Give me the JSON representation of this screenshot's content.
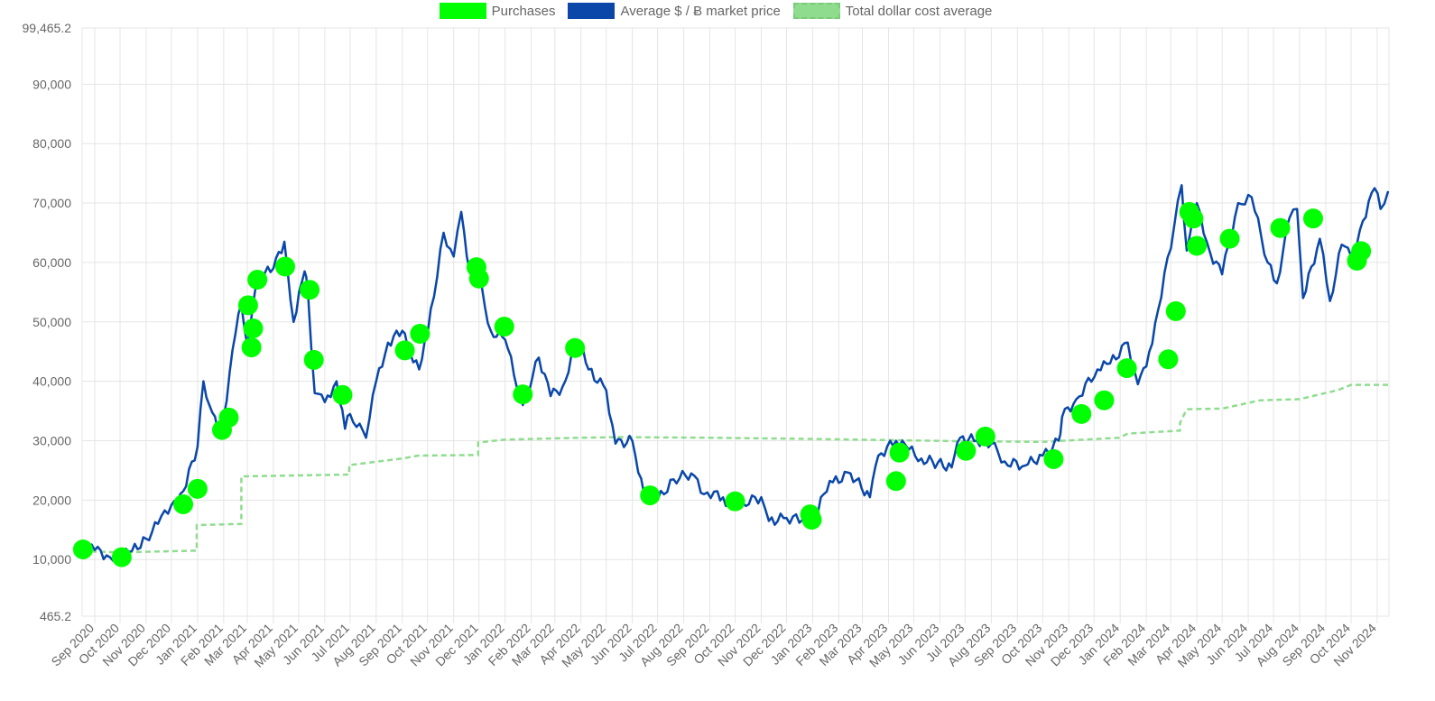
{
  "legend": {
    "purchases": "Purchases",
    "price": "Average $ / Ƀ market price",
    "cost_average": "Total dollar cost average"
  },
  "colors": {
    "purchases": "#00ff00",
    "price": "#0a47a8",
    "cost_average": "#8fdc8f",
    "grid": "#e5e5e5"
  },
  "chart_data": {
    "type": "line",
    "ylim": [
      465.2,
      99465.2
    ],
    "yticks": [
      465.2,
      10000,
      20000,
      30000,
      40000,
      50000,
      60000,
      70000,
      80000,
      90000,
      99465.2
    ],
    "ytick_labels": [
      "465.2",
      "10,000",
      "20,000",
      "30,000",
      "40,000",
      "50,000",
      "60,000",
      "70,000",
      "80,000",
      "90,000",
      "99,465.2"
    ],
    "x_start": "2020-08-17",
    "x_end": "2024-11-15",
    "xticks": [
      {
        "label": "Sep 2020",
        "date": "2020-09-01"
      },
      {
        "label": "Oct 2020",
        "date": "2020-10-01"
      },
      {
        "label": "Nov 2020",
        "date": "2020-11-01"
      },
      {
        "label": "Dec 2020",
        "date": "2020-12-01"
      },
      {
        "label": "Jan 2021",
        "date": "2021-01-01"
      },
      {
        "label": "Feb 2021",
        "date": "2021-02-01"
      },
      {
        "label": "Mar 2021",
        "date": "2021-03-01"
      },
      {
        "label": "Apr 2021",
        "date": "2021-04-01"
      },
      {
        "label": "May 2021",
        "date": "2021-05-01"
      },
      {
        "label": "Jun 2021",
        "date": "2021-06-01"
      },
      {
        "label": "Jul 2021",
        "date": "2021-07-01"
      },
      {
        "label": "Aug 2021",
        "date": "2021-08-01"
      },
      {
        "label": "Sep 2021",
        "date": "2021-09-01"
      },
      {
        "label": "Oct 2021",
        "date": "2021-10-01"
      },
      {
        "label": "Nov 2021",
        "date": "2021-11-01"
      },
      {
        "label": "Dec 2021",
        "date": "2021-12-01"
      },
      {
        "label": "Jan 2022",
        "date": "2022-01-01"
      },
      {
        "label": "Feb 2022",
        "date": "2022-02-01"
      },
      {
        "label": "Mar 2022",
        "date": "2022-03-01"
      },
      {
        "label": "Apr 2022",
        "date": "2022-04-01"
      },
      {
        "label": "May 2022",
        "date": "2022-05-01"
      },
      {
        "label": "Jun 2022",
        "date": "2022-06-01"
      },
      {
        "label": "Jul 2022",
        "date": "2022-07-01"
      },
      {
        "label": "Aug 2022",
        "date": "2022-08-01"
      },
      {
        "label": "Sep 2022",
        "date": "2022-09-01"
      },
      {
        "label": "Oct 2022",
        "date": "2022-10-01"
      },
      {
        "label": "Nov 2022",
        "date": "2022-11-01"
      },
      {
        "label": "Dec 2022",
        "date": "2022-12-01"
      },
      {
        "label": "Jan 2023",
        "date": "2023-01-01"
      },
      {
        "label": "Feb 2023",
        "date": "2023-02-01"
      },
      {
        "label": "Mar 2023",
        "date": "2023-03-01"
      },
      {
        "label": "Apr 2023",
        "date": "2023-04-01"
      },
      {
        "label": "May 2023",
        "date": "2023-05-01"
      },
      {
        "label": "Jun 2023",
        "date": "2023-06-01"
      },
      {
        "label": "Jul 2023",
        "date": "2023-07-01"
      },
      {
        "label": "Aug 2023",
        "date": "2023-08-01"
      },
      {
        "label": "Sep 2023",
        "date": "2023-09-01"
      },
      {
        "label": "Oct 2023",
        "date": "2023-10-01"
      },
      {
        "label": "Nov 2023",
        "date": "2023-11-01"
      },
      {
        "label": "Dec 2023",
        "date": "2023-12-01"
      },
      {
        "label": "Jan 2024",
        "date": "2024-01-01"
      },
      {
        "label": "Feb 2024",
        "date": "2024-02-01"
      },
      {
        "label": "Mar 2024",
        "date": "2024-03-01"
      },
      {
        "label": "Apr 2024",
        "date": "2024-04-01"
      },
      {
        "label": "May 2024",
        "date": "2024-05-01"
      },
      {
        "label": "Jun 2024",
        "date": "2024-06-01"
      },
      {
        "label": "Jul 2024",
        "date": "2024-07-01"
      },
      {
        "label": "Aug 2024",
        "date": "2024-08-01"
      },
      {
        "label": "Sep 2024",
        "date": "2024-09-01"
      },
      {
        "label": "Oct 2024",
        "date": "2024-10-01"
      },
      {
        "label": "Nov 2024",
        "date": "2024-11-01"
      }
    ],
    "grid": true,
    "legend_position": "top",
    "series": [
      {
        "name": "Average $ / Ƀ market price",
        "type": "line",
        "points": [
          [
            "2020-08-17",
            11900
          ],
          [
            "2020-09-01",
            11600
          ],
          [
            "2020-09-15",
            10700
          ],
          [
            "2020-10-01",
            10500
          ],
          [
            "2020-10-15",
            11400
          ],
          [
            "2020-11-01",
            13500
          ],
          [
            "2020-11-15",
            16000
          ],
          [
            "2020-12-01",
            19200
          ],
          [
            "2020-12-15",
            21500
          ],
          [
            "2021-01-01",
            29000
          ],
          [
            "2021-01-08",
            40000
          ],
          [
            "2021-01-15",
            36000
          ],
          [
            "2021-01-25",
            31800
          ],
          [
            "2021-02-01",
            34000
          ],
          [
            "2021-02-15",
            48000
          ],
          [
            "2021-02-22",
            53000
          ],
          [
            "2021-03-01",
            46000
          ],
          [
            "2021-03-10",
            55000
          ],
          [
            "2021-03-15",
            57500
          ],
          [
            "2021-04-01",
            59000
          ],
          [
            "2021-04-14",
            63500
          ],
          [
            "2021-04-25",
            50000
          ],
          [
            "2021-05-08",
            58500
          ],
          [
            "2021-05-12",
            55000
          ],
          [
            "2021-05-20",
            38000
          ],
          [
            "2021-06-01",
            36500
          ],
          [
            "2021-06-15",
            40000
          ],
          [
            "2021-06-25",
            32000
          ],
          [
            "2021-07-01",
            34500
          ],
          [
            "2021-07-20",
            30500
          ],
          [
            "2021-08-01",
            40000
          ],
          [
            "2021-08-15",
            46500
          ],
          [
            "2021-09-01",
            48500
          ],
          [
            "2021-09-07",
            46000
          ],
          [
            "2021-09-21",
            42000
          ],
          [
            "2021-10-01",
            48000
          ],
          [
            "2021-10-20",
            65000
          ],
          [
            "2021-11-01",
            61000
          ],
          [
            "2021-11-10",
            68500
          ],
          [
            "2021-11-20",
            58500
          ],
          [
            "2021-12-01",
            57000
          ],
          [
            "2021-12-15",
            48500
          ],
          [
            "2022-01-01",
            47000
          ],
          [
            "2022-01-22",
            36000
          ],
          [
            "2022-02-10",
            44000
          ],
          [
            "2022-02-24",
            37500
          ],
          [
            "2022-03-10",
            39000
          ],
          [
            "2022-03-28",
            47000
          ],
          [
            "2022-04-10",
            42000
          ],
          [
            "2022-05-01",
            38500
          ],
          [
            "2022-05-12",
            29500
          ],
          [
            "2022-06-01",
            30000
          ],
          [
            "2022-06-15",
            21000
          ],
          [
            "2022-07-01",
            20000
          ],
          [
            "2022-07-20",
            23500
          ],
          [
            "2022-08-10",
            24500
          ],
          [
            "2022-08-25",
            21000
          ],
          [
            "2022-09-10",
            21500
          ],
          [
            "2022-09-20",
            19000
          ],
          [
            "2022-10-10",
            19500
          ],
          [
            "2022-11-01",
            20500
          ],
          [
            "2022-11-10",
            16500
          ],
          [
            "2022-12-01",
            17000
          ],
          [
            "2022-12-20",
            16700
          ],
          [
            "2023-01-01",
            16600
          ],
          [
            "2023-01-14",
            21000
          ],
          [
            "2023-01-25",
            23000
          ],
          [
            "2023-02-15",
            24500
          ],
          [
            "2023-03-10",
            20500
          ],
          [
            "2023-03-20",
            27500
          ],
          [
            "2023-04-10",
            30000
          ],
          [
            "2023-04-25",
            28500
          ],
          [
            "2023-05-10",
            27000
          ],
          [
            "2023-06-15",
            25500
          ],
          [
            "2023-06-25",
            30500
          ],
          [
            "2023-07-15",
            30000
          ],
          [
            "2023-08-01",
            29500
          ],
          [
            "2023-08-17",
            26500
          ],
          [
            "2023-09-10",
            25800
          ],
          [
            "2023-10-01",
            27500
          ],
          [
            "2023-10-20",
            30000
          ],
          [
            "2023-10-24",
            34000
          ],
          [
            "2023-11-10",
            37000
          ],
          [
            "2023-12-05",
            42000
          ],
          [
            "2023-12-20",
            43000
          ],
          [
            "2024-01-10",
            46500
          ],
          [
            "2024-01-22",
            39500
          ],
          [
            "2024-02-01",
            42500
          ],
          [
            "2024-02-15",
            52000
          ],
          [
            "2024-03-05",
            66000
          ],
          [
            "2024-03-14",
            73000
          ],
          [
            "2024-03-20",
            62000
          ],
          [
            "2024-04-01",
            70000
          ],
          [
            "2024-04-17",
            61500
          ],
          [
            "2024-05-01",
            58000
          ],
          [
            "2024-05-20",
            70000
          ],
          [
            "2024-06-05",
            71000
          ],
          [
            "2024-06-24",
            60000
          ],
          [
            "2024-07-05",
            56500
          ],
          [
            "2024-07-20",
            67500
          ],
          [
            "2024-07-29",
            69000
          ],
          [
            "2024-08-05",
            54000
          ],
          [
            "2024-08-25",
            64000
          ],
          [
            "2024-09-06",
            53500
          ],
          [
            "2024-09-20",
            63000
          ],
          [
            "2024-10-01",
            61000
          ],
          [
            "2024-10-15",
            67000
          ],
          [
            "2024-10-29",
            72500
          ],
          [
            "2024-11-05",
            69000
          ],
          [
            "2024-11-14",
            72000
          ]
        ]
      },
      {
        "name": "Total dollar cost average",
        "type": "step",
        "points": [
          [
            "2020-08-17",
            11400
          ],
          [
            "2020-10-03",
            11200
          ],
          [
            "2020-12-31",
            11500
          ],
          [
            "2020-12-31",
            15800
          ],
          [
            "2021-02-22",
            16000
          ],
          [
            "2021-02-22",
            24000
          ],
          [
            "2021-06-30",
            24300
          ],
          [
            "2021-06-30",
            25900
          ],
          [
            "2021-09-01",
            27000
          ],
          [
            "2021-09-20",
            27500
          ],
          [
            "2021-11-30",
            27600
          ],
          [
            "2021-11-30",
            29700
          ],
          [
            "2022-01-01",
            30200
          ],
          [
            "2022-04-01",
            30500
          ],
          [
            "2022-05-15",
            30600
          ],
          [
            "2022-09-01",
            30500
          ],
          [
            "2022-12-31",
            30300
          ],
          [
            "2023-03-31",
            30100
          ],
          [
            "2023-07-01",
            29900
          ],
          [
            "2023-10-01",
            29800
          ],
          [
            "2023-12-31",
            30500
          ],
          [
            "2024-01-10",
            31200
          ],
          [
            "2024-03-12",
            31700
          ],
          [
            "2024-03-12",
            33000
          ],
          [
            "2024-03-20",
            35300
          ],
          [
            "2024-05-01",
            35400
          ],
          [
            "2024-06-15",
            36800
          ],
          [
            "2024-08-01",
            37000
          ],
          [
            "2024-09-15",
            38500
          ],
          [
            "2024-10-01",
            39400
          ],
          [
            "2024-11-15",
            39400
          ]
        ]
      },
      {
        "name": "Purchases",
        "type": "scatter",
        "points": [
          [
            "2020-08-18",
            11700
          ],
          [
            "2020-10-03",
            10400
          ],
          [
            "2020-12-15",
            19300
          ],
          [
            "2021-01-01",
            21900
          ],
          [
            "2021-01-30",
            31800
          ],
          [
            "2021-02-07",
            33900
          ],
          [
            "2021-03-02",
            52800
          ],
          [
            "2021-03-06",
            45700
          ],
          [
            "2021-03-08",
            48900
          ],
          [
            "2021-03-13",
            57100
          ],
          [
            "2021-04-15",
            59300
          ],
          [
            "2021-05-14",
            55400
          ],
          [
            "2021-05-19",
            43600
          ],
          [
            "2021-06-22",
            37700
          ],
          [
            "2021-09-04",
            45200
          ],
          [
            "2021-09-22",
            48000
          ],
          [
            "2021-11-28",
            59200
          ],
          [
            "2021-12-01",
            57300
          ],
          [
            "2021-12-31",
            49200
          ],
          [
            "2022-01-22",
            37800
          ],
          [
            "2022-03-25",
            45600
          ],
          [
            "2022-06-22",
            20800
          ],
          [
            "2022-10-01",
            19800
          ],
          [
            "2022-12-29",
            17600
          ],
          [
            "2022-12-31",
            16700
          ],
          [
            "2023-04-10",
            23200
          ],
          [
            "2023-04-14",
            28000
          ],
          [
            "2023-07-02",
            28300
          ],
          [
            "2023-07-25",
            30700
          ],
          [
            "2023-10-14",
            26900
          ],
          [
            "2023-11-16",
            34500
          ],
          [
            "2023-12-13",
            36800
          ],
          [
            "2024-01-09",
            42200
          ],
          [
            "2024-02-27",
            43700
          ],
          [
            "2024-03-07",
            51800
          ],
          [
            "2024-03-23",
            68500
          ],
          [
            "2024-03-28",
            67400
          ],
          [
            "2024-04-01",
            62800
          ],
          [
            "2024-05-10",
            64000
          ],
          [
            "2024-07-09",
            65800
          ],
          [
            "2024-08-17",
            67400
          ],
          [
            "2024-10-08",
            60300
          ],
          [
            "2024-10-13",
            61900
          ]
        ]
      }
    ]
  }
}
